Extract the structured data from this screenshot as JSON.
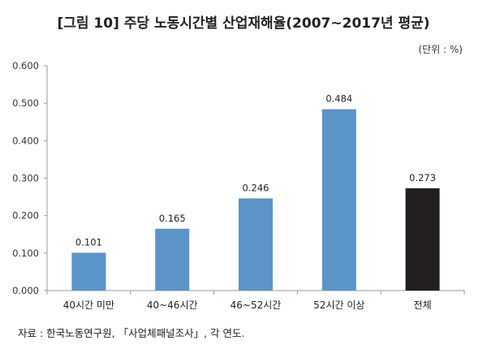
{
  "header": {
    "title": "[그림 10] 주당 노동시간별 산업재해율(2007~2017년 평균)",
    "unit": "(단위 : %)"
  },
  "footer": {
    "source": "자료 : 한국노동연구원, 「사업체패널조사」, 각 연도."
  },
  "colors": {
    "bar": "#5b94c9",
    "total_bar": "#231f20",
    "axis": "#9a9a9a"
  },
  "chart_data": {
    "type": "bar",
    "title": "[그림 10] 주당 노동시간별 산업재해율(2007~2017년 평균)",
    "xlabel": "",
    "ylabel": "(단위 : %)",
    "categories": [
      "40시간 미만",
      "40~46시간",
      "46~52시간",
      "52시간 이상",
      "전체"
    ],
    "values": [
      0.101,
      0.165,
      0.246,
      0.484,
      0.273
    ],
    "value_labels": [
      "0.101",
      "0.165",
      "0.246",
      "0.484",
      "0.273"
    ],
    "highlight": [
      false,
      false,
      false,
      false,
      true
    ],
    "ylim": [
      0,
      0.6
    ],
    "yticks": [
      0,
      0.1,
      0.2,
      0.3,
      0.4,
      0.5,
      0.6
    ],
    "ytick_labels": [
      "0.000",
      "0.100",
      "0.200",
      "0.300",
      "0.400",
      "0.500",
      "0.600"
    ],
    "grid": false,
    "legend": "none"
  }
}
